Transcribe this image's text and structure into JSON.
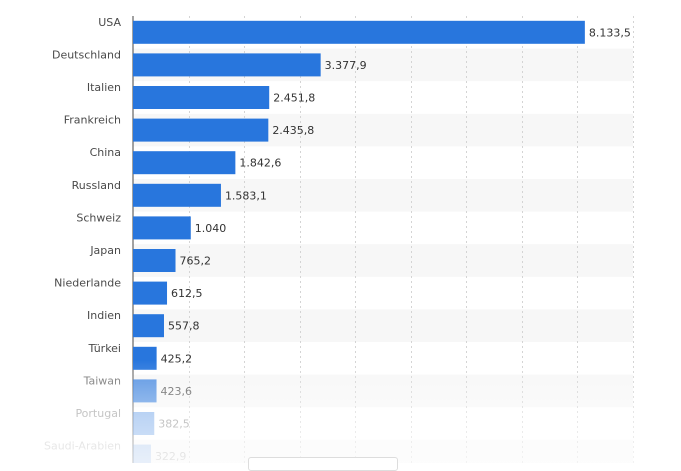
{
  "chart_data": {
    "type": "bar",
    "orientation": "horizontal",
    "categories": [
      "USA",
      "Deutschland",
      "Italien",
      "Frankreich",
      "China",
      "Russland",
      "Schweiz",
      "Japan",
      "Niederlande",
      "Indien",
      "Türkei",
      "Taiwan",
      "Portugal",
      "Saudi-Arabien"
    ],
    "values": [
      8133.5,
      3377.9,
      2451.8,
      2435.8,
      1842.6,
      1583.1,
      1040,
      765.2,
      612.5,
      557.8,
      425.2,
      423.6,
      382.5,
      322.9
    ],
    "value_labels": [
      "8.133,5",
      "3.377,9",
      "2.451,8",
      "2.435,8",
      "1.842,6",
      "1.583,1",
      "1.040",
      "765,2",
      "612,5",
      "557,8",
      "425,2",
      "423,6",
      "382,5",
      "322,9"
    ],
    "xlim": [
      0,
      9000
    ],
    "grid": true,
    "bar_color": "#2876dd",
    "background_stripe_color": "#f7f7f7"
  }
}
